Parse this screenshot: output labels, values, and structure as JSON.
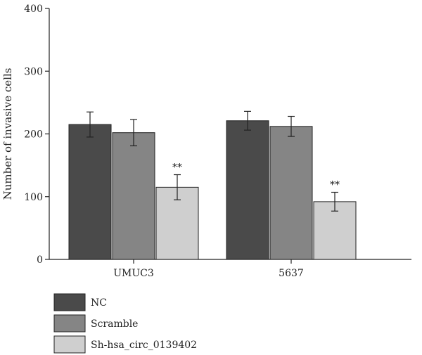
{
  "chart_data": {
    "type": "bar",
    "title": "",
    "xlabel": "",
    "ylabel": "Number of invasive cells",
    "ylim": [
      0,
      400
    ],
    "yticks": [
      0,
      100,
      200,
      300,
      400
    ],
    "categories": [
      "UMUC3",
      "5637"
    ],
    "series": [
      {
        "name": "NC",
        "color": "#4a4a4a",
        "values": [
          215,
          221
        ],
        "errors": [
          20,
          15
        ],
        "annotations": [
          "",
          ""
        ]
      },
      {
        "name": "Scramble",
        "color": "#858585",
        "values": [
          202,
          212
        ],
        "errors": [
          21,
          16
        ],
        "annotations": [
          "",
          ""
        ]
      },
      {
        "name": "Sh-hsa_circ_0139402",
        "color": "#cfcfcf",
        "values": [
          115,
          92
        ],
        "errors": [
          20,
          15
        ],
        "annotations": [
          "**",
          "**"
        ]
      }
    ],
    "grid": false,
    "legend_position": "bottom-left"
  }
}
